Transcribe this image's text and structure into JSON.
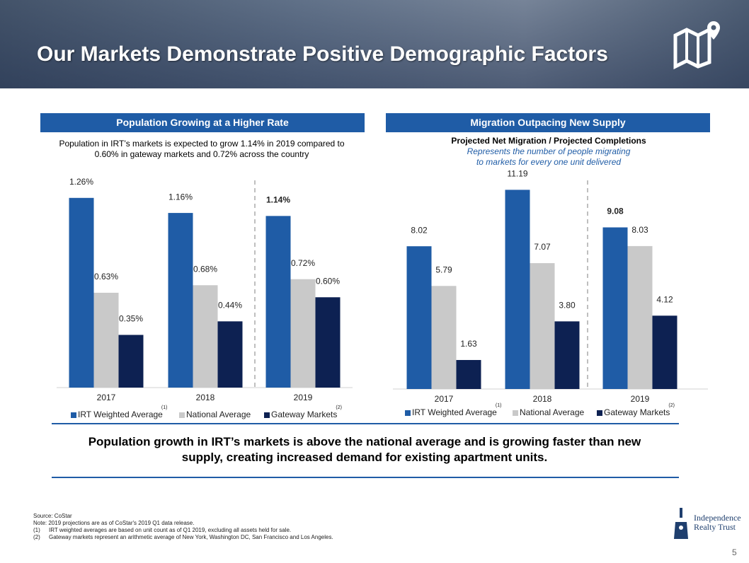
{
  "header": {
    "title": "Our Markets Demonstrate Positive Demographic Factors"
  },
  "chart_data": [
    {
      "type": "bar",
      "section": "Population Growing at a Higher Rate",
      "subtitle": [
        "Population in IRT’s markets is expected to grow 1.14% in 2019 compared to",
        "0.60% in gateway markets and 0.72% across the country"
      ],
      "categories": [
        "2017",
        "2018",
        "2019"
      ],
      "ylim": [
        0,
        1.4
      ],
      "series": [
        {
          "name": "IRT Weighted Average",
          "footnote": "(1)",
          "color": "#1f5ca6",
          "values": [
            1.26,
            1.16,
            1.14
          ],
          "value_labels": [
            "1.26%",
            "1.16%",
            "1.14%"
          ]
        },
        {
          "name": "National Average",
          "color": "#c9c9c9",
          "values": [
            0.63,
            0.68,
            0.72
          ],
          "value_labels": [
            "0.63%",
            "0.68%",
            "0.72%"
          ]
        },
        {
          "name": "Gateway Markets",
          "footnote": "(2)",
          "color": "#0d2152",
          "values": [
            0.35,
            0.44,
            0.6
          ],
          "value_labels": [
            "0.35%",
            "0.44%",
            "0.60%"
          ]
        }
      ]
    },
    {
      "type": "bar",
      "section": "Migration Outpacing New Supply",
      "title": "Projected Net Migration / Projected Completions",
      "subtitle": [
        "Represents the number of people migrating",
        "to markets for every one unit delivered"
      ],
      "categories": [
        "2017",
        "2018",
        "2019"
      ],
      "ylim": [
        0,
        12
      ],
      "series": [
        {
          "name": "IRT Weighted Average",
          "footnote": "(1)",
          "color": "#1f5ca6",
          "values": [
            8.02,
            11.19,
            9.08
          ],
          "value_labels": [
            "8.02",
            "11.19",
            "9.08"
          ]
        },
        {
          "name": "National Average",
          "color": "#c9c9c9",
          "values": [
            5.79,
            7.07,
            8.03
          ],
          "value_labels": [
            "5.79",
            "7.07",
            "8.03"
          ]
        },
        {
          "name": "Gateway Markets",
          "footnote": "(2)",
          "color": "#0d2152",
          "values": [
            1.63,
            3.8,
            4.12
          ],
          "value_labels": [
            "1.63",
            "3.80",
            "4.12"
          ]
        }
      ]
    }
  ],
  "conclusion": [
    "Population growth in IRT’s markets is above the national average and is growing faster than new",
    "supply, creating increased demand for existing apartment units."
  ],
  "footnotes": {
    "source": "Source: CoStar",
    "note": "Note: 2019 projections are as of CoStar's 2019 Q1 data release.",
    "items": [
      {
        "marker": "(1)",
        "text": "IRT weighted averages are based on unit count as of Q1 2019, excluding all assets held for sale."
      },
      {
        "marker": "(2)",
        "text": "Gateway markets represent an arithmetic average of New York, Washington DC, San Francisco and Los Angeles."
      }
    ]
  },
  "logo": {
    "line1": "Independence",
    "line2": "Realty Trust"
  },
  "page_number": 5
}
